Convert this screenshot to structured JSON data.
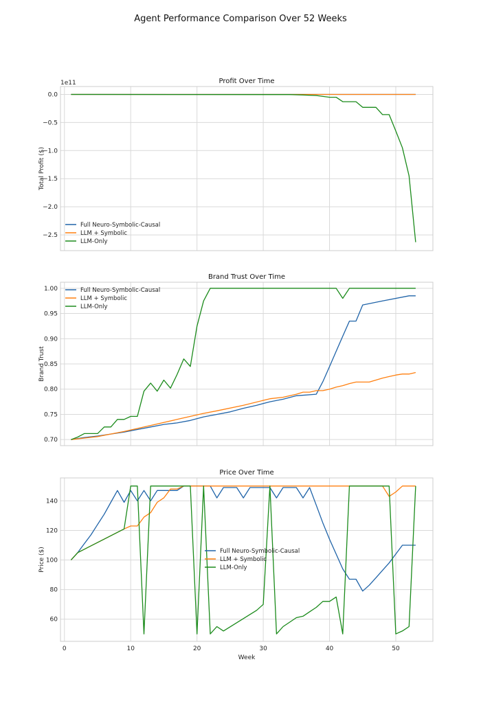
{
  "suptitle": "Agent Performance Comparison Over 52 Weeks",
  "chart_data": [
    {
      "type": "line",
      "title": "Profit Over Time",
      "xlabel": "",
      "ylabel": "Total Profit ($)",
      "offset_text": "1e11",
      "y_scale_factor": 100000000000.0,
      "xlim": [
        -0.6,
        55.6
      ],
      "ylim": [
        -2.78,
        0.14
      ],
      "xticks": [
        0,
        10,
        20,
        30,
        40,
        50
      ],
      "xtick_labels": [
        "",
        "",
        "",
        "",
        "",
        ""
      ],
      "yticks": [
        0.0,
        -0.5,
        -1.0,
        -1.5,
        -2.0,
        -2.5
      ],
      "ytick_labels": [
        "0.0",
        "−0.5",
        "−1.0",
        "−1.5",
        "−2.0",
        "−2.5"
      ],
      "grid": true,
      "legend_location": "lower-left",
      "series": [
        {
          "name": "Full Neuro-Symbolic-Causal",
          "color": "#1f63a8",
          "x": [
            1,
            53
          ],
          "y": [
            0,
            0
          ]
        },
        {
          "name": "LLM + Symbolic",
          "color": "#ff7f0e",
          "x": [
            1,
            53
          ],
          "y": [
            0,
            0
          ]
        },
        {
          "name": "LLM-Only",
          "color": "#1a8a1a",
          "x": [
            1,
            34,
            36,
            38,
            40,
            41,
            42,
            43,
            44,
            45,
            46,
            47,
            48,
            49,
            50,
            51,
            52,
            53
          ],
          "y": [
            0,
            -0.003,
            -0.01,
            -0.02,
            -0.05,
            -0.05,
            -0.13,
            -0.13,
            -0.13,
            -0.23,
            -0.23,
            -0.23,
            -0.36,
            -0.36,
            -0.65,
            -0.95,
            -1.45,
            -2.63
          ]
        }
      ]
    },
    {
      "type": "line",
      "title": "Brand Trust Over Time",
      "xlabel": "",
      "ylabel": "Brand Trust",
      "xlim": [
        -0.6,
        55.6
      ],
      "ylim": [
        0.688,
        1.012
      ],
      "xticks": [
        0,
        10,
        20,
        30,
        40,
        50
      ],
      "xtick_labels": [
        "",
        "",
        "",
        "",
        "",
        ""
      ],
      "yticks": [
        0.7,
        0.75,
        0.8,
        0.85,
        0.9,
        0.95,
        1.0
      ],
      "ytick_labels": [
        "0.70",
        "0.75",
        "0.80",
        "0.85",
        "0.90",
        "0.95",
        "1.00"
      ],
      "grid": true,
      "legend_location": "upper-left",
      "series": [
        {
          "name": "Full Neuro-Symbolic-Causal",
          "color": "#1f63a8",
          "x": [
            1,
            3,
            5,
            7,
            9,
            11,
            13,
            15,
            17,
            19,
            21,
            23,
            25,
            27,
            29,
            31,
            33,
            35,
            38,
            39,
            40,
            41,
            42,
            43,
            44,
            45,
            48,
            52,
            53
          ],
          "y": [
            0.7,
            0.704,
            0.707,
            0.711,
            0.715,
            0.72,
            0.725,
            0.73,
            0.733,
            0.738,
            0.745,
            0.75,
            0.755,
            0.762,
            0.768,
            0.775,
            0.78,
            0.787,
            0.79,
            0.815,
            0.845,
            0.875,
            0.905,
            0.935,
            0.935,
            0.967,
            0.975,
            0.985,
            0.985
          ]
        },
        {
          "name": "LLM + Symbolic",
          "color": "#ff7f0e",
          "x": [
            1,
            5,
            9,
            13,
            17,
            21,
            23,
            27,
            31,
            33,
            35,
            36,
            37,
            38,
            39,
            40,
            41,
            42,
            43,
            44,
            45,
            46,
            47,
            48,
            49,
            50,
            51,
            52,
            53
          ],
          "y": [
            0.7,
            0.706,
            0.716,
            0.728,
            0.74,
            0.752,
            0.757,
            0.768,
            0.781,
            0.784,
            0.79,
            0.794,
            0.794,
            0.797,
            0.797,
            0.8,
            0.804,
            0.807,
            0.811,
            0.814,
            0.814,
            0.814,
            0.818,
            0.822,
            0.825,
            0.828,
            0.83,
            0.83,
            0.833
          ]
        },
        {
          "name": "LLM-Only",
          "color": "#1a8a1a",
          "x": [
            1,
            2,
            3,
            4,
            5,
            6,
            7,
            8,
            9,
            10,
            11,
            12,
            13,
            14,
            15,
            16,
            17,
            18,
            19,
            20,
            21,
            22,
            41,
            42,
            43,
            53
          ],
          "y": [
            0.7,
            0.705,
            0.712,
            0.712,
            0.712,
            0.725,
            0.725,
            0.74,
            0.74,
            0.746,
            0.746,
            0.796,
            0.812,
            0.796,
            0.818,
            0.802,
            0.829,
            0.86,
            0.845,
            0.925,
            0.975,
            1.0,
            1.0,
            0.98,
            1.0,
            1.0
          ]
        }
      ]
    },
    {
      "type": "line",
      "title": "Price Over Time",
      "xlabel": "Week",
      "ylabel": "Price ($)",
      "xlim": [
        -0.6,
        55.6
      ],
      "ylim": [
        45.0,
        155.5
      ],
      "xticks": [
        0,
        10,
        20,
        30,
        40,
        50
      ],
      "xtick_labels": [
        "0",
        "10",
        "20",
        "30",
        "40",
        "50"
      ],
      "yticks": [
        60,
        80,
        100,
        120,
        140
      ],
      "ytick_labels": [
        "60",
        "80",
        "100",
        "120",
        "140"
      ],
      "grid": true,
      "legend_location": "center",
      "series": [
        {
          "name": "Full Neuro-Symbolic-Causal",
          "color": "#1f63a8",
          "x": [
            1,
            2,
            3,
            4,
            5,
            6,
            7,
            8,
            9,
            10,
            11,
            12,
            13,
            14,
            15,
            16,
            17,
            18,
            19,
            20,
            21,
            22,
            23,
            24,
            25,
            26,
            27,
            28,
            29,
            30,
            31,
            32,
            33,
            34,
            35,
            36,
            37,
            38,
            39,
            40,
            41,
            42,
            43,
            44,
            45,
            46,
            47,
            48,
            49,
            50,
            51,
            52,
            53
          ],
          "y": [
            100,
            105,
            111,
            117,
            124,
            131,
            139,
            147,
            139,
            147,
            140,
            147,
            140,
            147,
            147,
            147,
            147,
            150,
            150,
            150,
            150,
            150,
            142,
            149,
            149,
            149,
            142,
            149,
            149,
            149,
            149,
            142,
            149,
            149,
            149,
            142,
            149,
            137,
            125,
            114,
            104,
            94,
            87,
            87,
            79,
            83,
            88,
            93,
            98,
            104,
            110,
            110,
            110
          ]
        },
        {
          "name": "LLM + Symbolic",
          "color": "#ff7f0e",
          "x": [
            1,
            2,
            9,
            10,
            11,
            12,
            13,
            14,
            15,
            16,
            17,
            18,
            19,
            48,
            49,
            50,
            51,
            52,
            53
          ],
          "y": [
            100,
            105,
            121,
            123,
            123,
            129,
            132,
            139,
            142,
            148,
            148,
            150,
            150,
            150,
            143,
            146,
            150,
            150,
            150
          ]
        },
        {
          "name": "LLM-Only",
          "color": "#1a8a1a",
          "x": [
            1,
            2,
            9,
            10,
            11,
            12,
            13,
            19,
            20,
            21,
            22,
            23,
            24,
            29,
            30,
            31,
            32,
            33,
            34,
            35,
            36,
            37,
            38,
            39,
            40,
            41,
            42,
            43,
            49,
            50,
            51,
            52,
            53
          ],
          "y": [
            100,
            105,
            121,
            150,
            150,
            50,
            150,
            150,
            50,
            150,
            50,
            55,
            52,
            66,
            70,
            150,
            50,
            55,
            58,
            61,
            62,
            65,
            68,
            72,
            72,
            75,
            50,
            150,
            150,
            50,
            52,
            55,
            150
          ]
        }
      ]
    }
  ]
}
